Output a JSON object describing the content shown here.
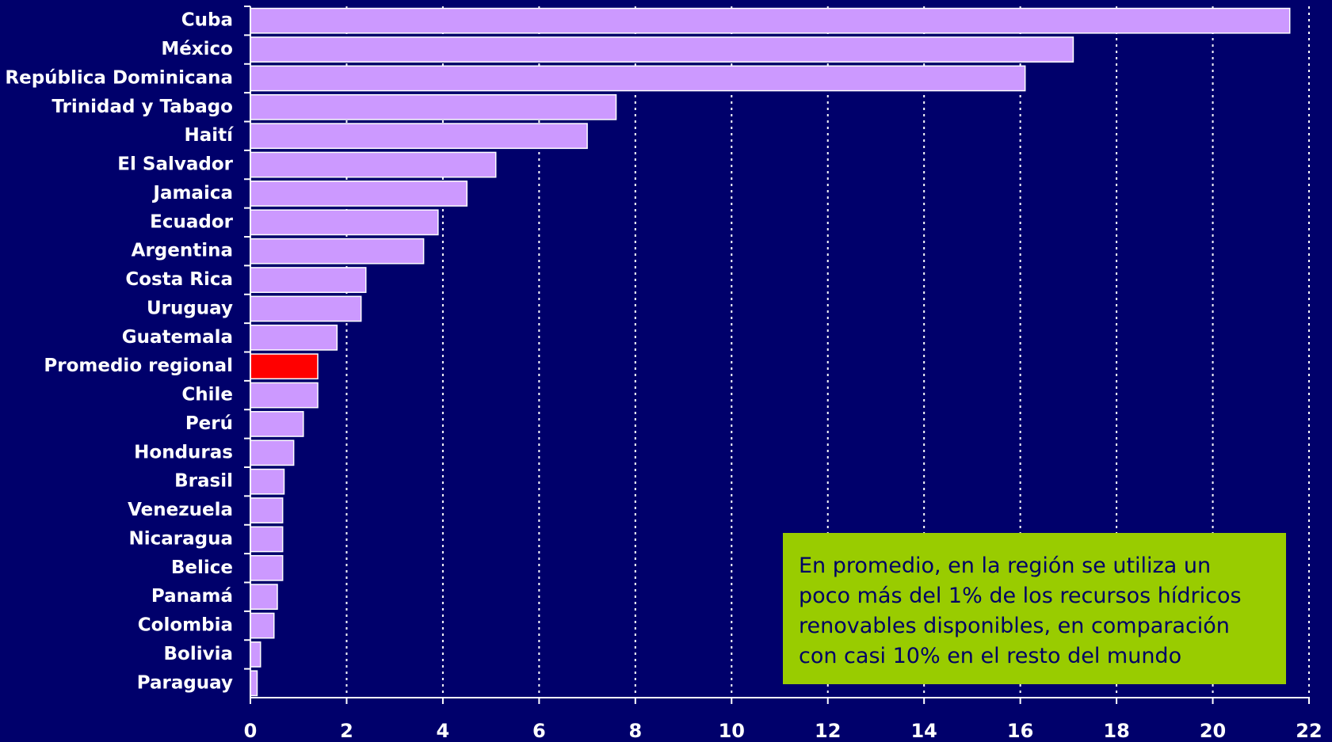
{
  "chart_data": {
    "type": "hbar",
    "categories": [
      "Cuba",
      "México",
      "República Dominicana",
      "Trinidad y Tabago",
      "Haití",
      "El Salvador",
      "Jamaica",
      "Ecuador",
      "Argentina",
      "Costa Rica",
      "Uruguay",
      "Guatemala",
      "Promedio regional",
      "Chile",
      "Perú",
      "Honduras",
      "Brasil",
      "Venezuela",
      "Nicaragua",
      "Belice",
      "Panamá",
      "Colombia",
      "Bolivia",
      "Paraguay"
    ],
    "values": [
      21.6,
      17.1,
      16.1,
      7.6,
      7.0,
      5.1,
      4.5,
      3.9,
      3.6,
      2.4,
      2.3,
      1.8,
      1.4,
      1.4,
      1.1,
      0.9,
      0.7,
      0.67,
      0.67,
      0.67,
      0.56,
      0.49,
      0.21,
      0.14
    ],
    "colors": [
      "#cc99ff",
      "#cc99ff",
      "#cc99ff",
      "#cc99ff",
      "#cc99ff",
      "#cc99ff",
      "#cc99ff",
      "#cc99ff",
      "#cc99ff",
      "#cc99ff",
      "#cc99ff",
      "#cc99ff",
      "#ff0000",
      "#cc99ff",
      "#cc99ff",
      "#cc99ff",
      "#cc99ff",
      "#cc99ff",
      "#cc99ff",
      "#cc99ff",
      "#cc99ff",
      "#cc99ff",
      "#cc99ff",
      "#cc99ff"
    ],
    "xlim": [
      0,
      22
    ],
    "xticks": [
      0,
      2,
      4,
      6,
      8,
      10,
      12,
      14,
      16,
      18,
      20,
      22
    ],
    "grid": true,
    "annotation": [
      "En promedio, en la región se utiliza un",
      "poco más del 1% de los recursos hídricos",
      "renovables disponibles, en comparación",
      "con casi 10% en el resto del mundo"
    ]
  }
}
